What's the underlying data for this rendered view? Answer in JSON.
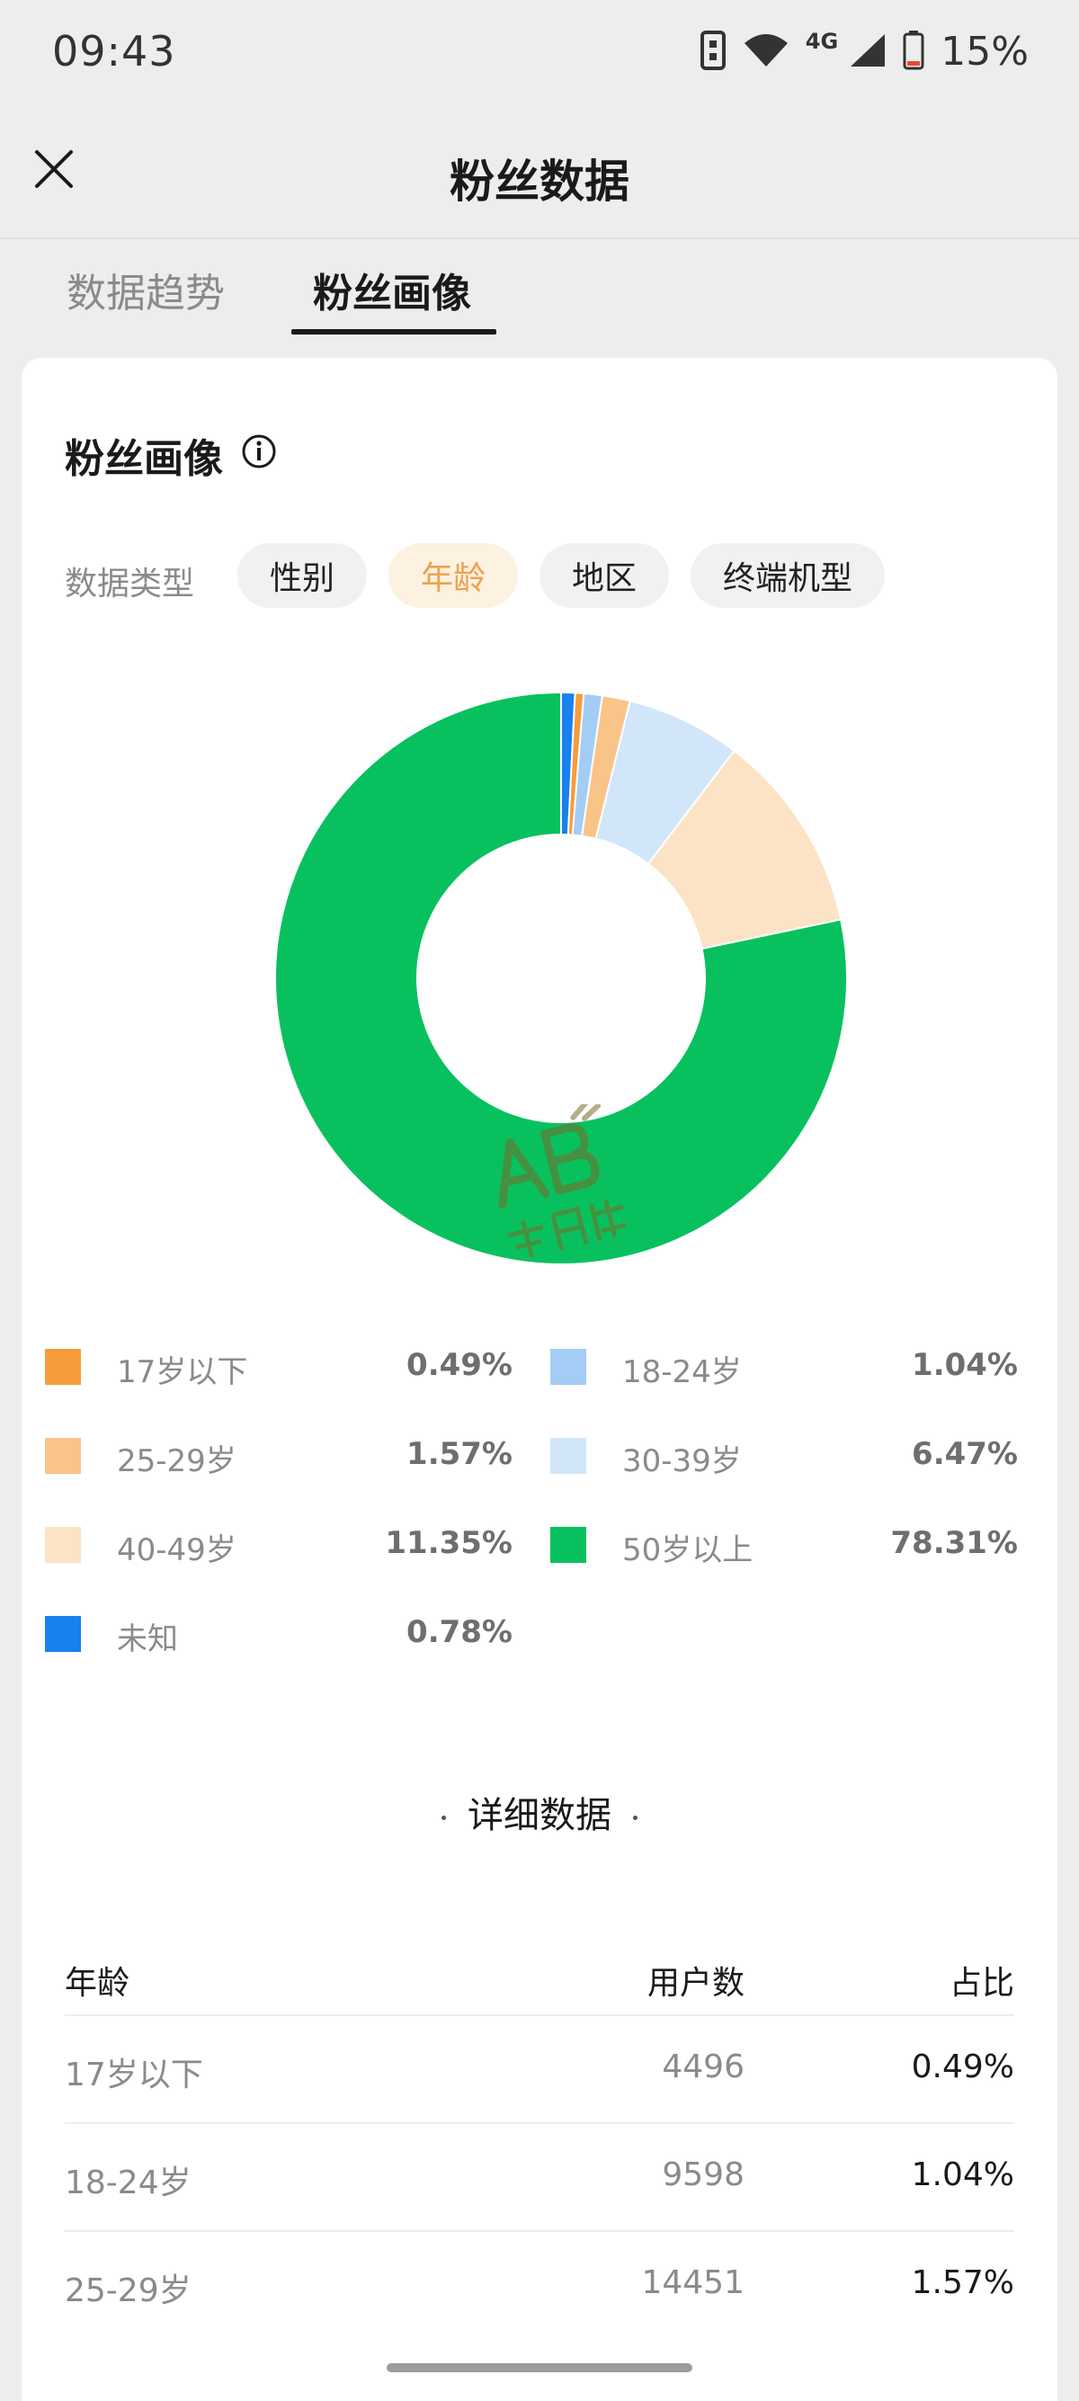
{
  "status_bar": {
    "time": "09:43",
    "network": "4G",
    "battery": "15%",
    "icons": [
      "vibrate-icon",
      "wifi-icon",
      "signal-icon",
      "battery-icon"
    ]
  },
  "header": {
    "title": "粉丝数据",
    "close_icon": "close-icon"
  },
  "tabs": [
    {
      "label": "数据趋势",
      "active": false
    },
    {
      "label": "粉丝画像",
      "active": true
    }
  ],
  "card": {
    "title": "粉丝画像",
    "info_icon": "info-icon",
    "filter_label": "数据类型",
    "chips": [
      {
        "label": "性别",
        "selected": false
      },
      {
        "label": "年龄",
        "selected": true
      },
      {
        "label": "地区",
        "selected": false
      },
      {
        "label": "终端机型",
        "selected": false
      }
    ]
  },
  "colors": {
    "accent": "#eea24a",
    "slice_under17": "#f79c3c",
    "slice_18_24": "#a3cdf5",
    "slice_25_29": "#f9c488",
    "slice_30_39": "#d2e6fa",
    "slice_40_49": "#fce3c6",
    "slice_50plus": "#08c15e",
    "slice_unknown": "#1880ef"
  },
  "chart_data": {
    "type": "pie",
    "donut": true,
    "slices": [
      {
        "label": "17岁以下",
        "value": 0.49,
        "value_text": "0.49%",
        "color": "#f79c3c"
      },
      {
        "label": "18-24岁",
        "value": 1.04,
        "value_text": "1.04%",
        "color": "#a3cdf5"
      },
      {
        "label": "25-29岁",
        "value": 1.57,
        "value_text": "1.57%",
        "color": "#f9c488"
      },
      {
        "label": "30-39岁",
        "value": 6.47,
        "value_text": "6.47%",
        "color": "#d2e6fa"
      },
      {
        "label": "40-49岁",
        "value": 11.35,
        "value_text": "11.35%",
        "color": "#fce3c6"
      },
      {
        "label": "50岁以上",
        "value": 78.31,
        "value_text": "78.31%",
        "color": "#08c15e"
      },
      {
        "label": "未知",
        "value": 0.78,
        "value_text": "0.78%",
        "color": "#1880ef"
      }
    ]
  },
  "detail": {
    "title": "详细数据",
    "headers": {
      "age": "年龄",
      "users": "用户数",
      "share": "占比"
    },
    "rows": [
      {
        "age": "17岁以下",
        "users": "4496",
        "share": "0.49%"
      },
      {
        "age": "18-24岁",
        "users": "9598",
        "share": "1.04%"
      },
      {
        "age": "25-29岁",
        "users": "14451",
        "share": "1.57%"
      }
    ]
  }
}
